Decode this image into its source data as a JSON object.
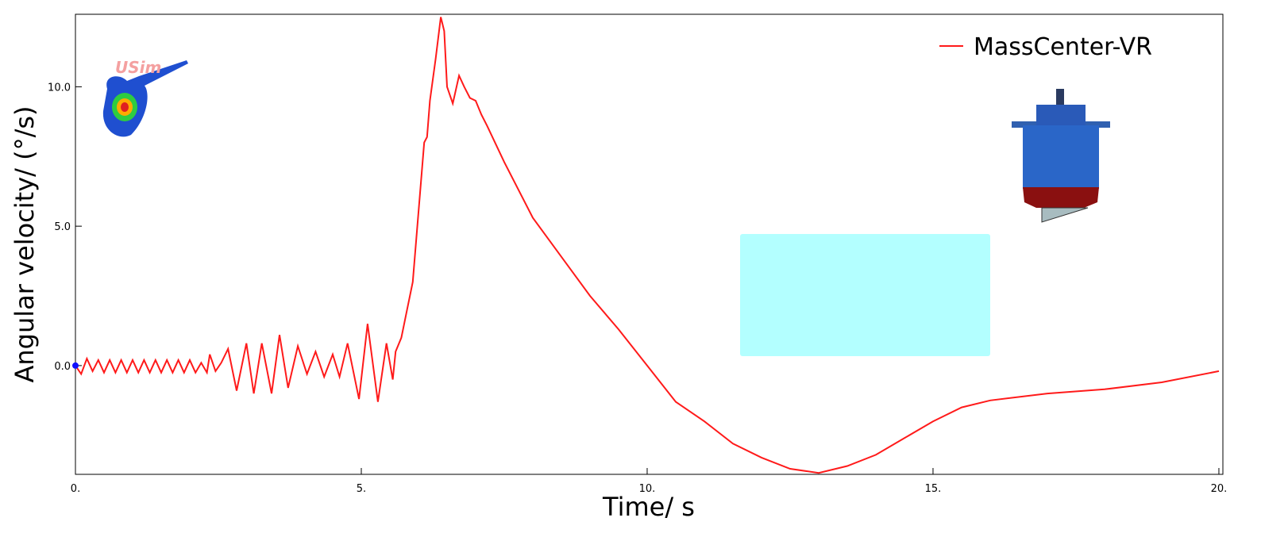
{
  "chart_data": {
    "type": "line",
    "xlabel": "Time/ s",
    "ylabel": "Angular velocity/ (°/s)",
    "logo_text": "USim",
    "xlim": [
      0,
      20.07
    ],
    "ylim": [
      -3.9,
      12.6
    ],
    "xticks": [
      {
        "value": 0,
        "label": "0."
      },
      {
        "value": 5,
        "label": "5."
      },
      {
        "value": 10,
        "label": "10."
      },
      {
        "value": 15,
        "label": "15."
      },
      {
        "value": 20,
        "label": "20."
      }
    ],
    "yticks": [
      {
        "value": 0,
        "label": "0.0"
      },
      {
        "value": 5,
        "label": "5.0"
      },
      {
        "value": 10,
        "label": "10.0"
      }
    ],
    "legend": "upper right",
    "x": [
      0,
      0.1,
      0.2,
      0.3,
      0.4,
      0.5,
      0.6,
      0.7,
      0.8,
      0.9,
      1.0,
      1.1,
      1.2,
      1.3,
      1.4,
      1.5,
      1.6,
      1.7,
      1.8,
      1.9,
      2.0,
      2.1,
      2.2,
      2.3,
      2.35,
      2.45,
      2.55,
      2.67,
      2.82,
      2.99,
      3.12,
      3.26,
      3.43,
      3.57,
      3.72,
      3.89,
      4.05,
      4.2,
      4.35,
      4.5,
      4.62,
      4.76,
      4.96,
      5.11,
      5.29,
      5.44,
      5.55,
      5.6,
      5.7,
      5.8,
      5.9,
      6.0,
      6.1,
      6.15,
      6.2,
      6.3,
      6.39,
      6.45,
      6.5,
      6.6,
      6.71,
      6.8,
      6.9,
      7.0,
      7.1,
      7.2,
      7.5,
      8.0,
      8.5,
      9.0,
      9.5,
      10.0,
      10.5,
      11.0,
      11.5,
      12.0,
      12.5,
      13.0,
      13.5,
      14.0,
      14.5,
      15.0,
      15.5,
      16.0,
      17.0,
      18.0,
      19.0,
      20.0
    ],
    "series": [
      {
        "name": "MassCenter-VR",
        "color": "#ff1a1a",
        "values": [
          0,
          -0.3,
          0.25,
          -0.2,
          0.2,
          -0.25,
          0.2,
          -0.25,
          0.2,
          -0.25,
          0.2,
          -0.25,
          0.2,
          -0.25,
          0.2,
          -0.25,
          0.2,
          -0.25,
          0.2,
          -0.25,
          0.2,
          -0.25,
          0.1,
          -0.25,
          0.4,
          -0.2,
          0.1,
          0.6,
          -0.9,
          0.8,
          -1.0,
          0.8,
          -1.0,
          1.1,
          -0.8,
          0.7,
          -0.3,
          0.5,
          -0.4,
          0.4,
          -0.4,
          0.8,
          -1.2,
          1.5,
          -1.3,
          0.8,
          -0.5,
          0.5,
          1.0,
          2.0,
          3.0,
          5.5,
          8.0,
          8.2,
          9.5,
          11.0,
          12.5,
          12.0,
          10.0,
          9.4,
          10.4,
          10.0,
          9.6,
          9.5,
          9.0,
          8.6,
          7.3,
          5.3,
          3.9,
          2.5,
          1.3,
          0.0,
          -1.3,
          -2.0,
          -2.8,
          -3.3,
          -3.7,
          -3.85,
          -3.6,
          -3.2,
          -2.6,
          -2.0,
          -1.5,
          -1.25,
          -1.0,
          -0.85,
          -0.6,
          -0.2
        ]
      }
    ]
  }
}
